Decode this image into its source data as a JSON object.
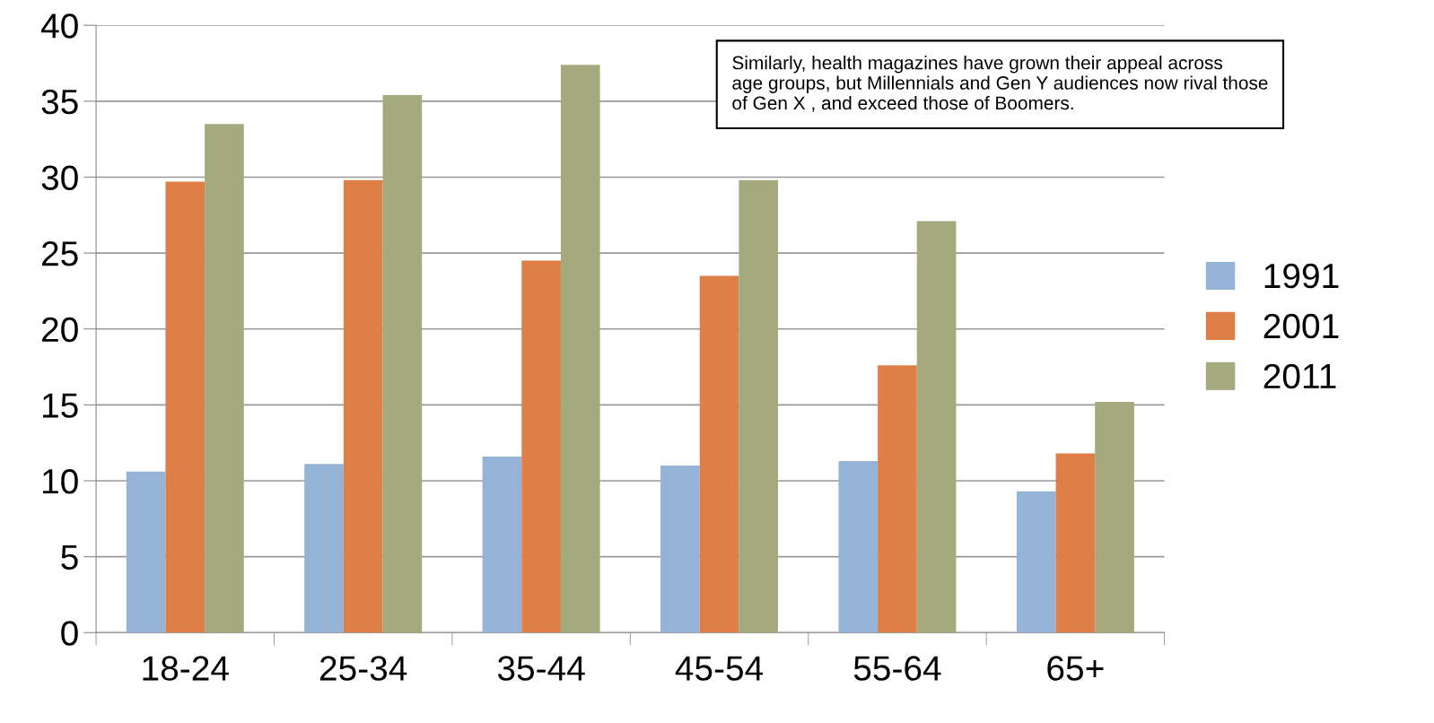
{
  "chart_data": {
    "type": "bar",
    "categories": [
      "18-24",
      "25-34",
      "35-44",
      "45-54",
      "55-64",
      "65+"
    ],
    "series": [
      {
        "name": "1991",
        "color": "#95b3d7",
        "values": [
          10.6,
          11.1,
          11.6,
          11.0,
          11.3,
          9.3
        ]
      },
      {
        "name": "2001",
        "color": "#dd7f47",
        "values": [
          29.7,
          29.8,
          24.5,
          23.5,
          17.6,
          11.8
        ]
      },
      {
        "name": "2011",
        "color": "#a4aa7e",
        "values": [
          33.5,
          35.4,
          37.4,
          29.8,
          27.1,
          15.2
        ]
      }
    ],
    "ylim": [
      0,
      40
    ],
    "yticks": [
      0,
      5,
      10,
      15,
      20,
      25,
      30,
      35,
      40
    ],
    "grid": "y",
    "legend": "right",
    "annotations": [
      "Similarly, health magazines have grown their appeal across\nage groups, but Millennials and Gen Y audiences now rival those\nof Gen X , and exceed those of Boomers."
    ]
  }
}
